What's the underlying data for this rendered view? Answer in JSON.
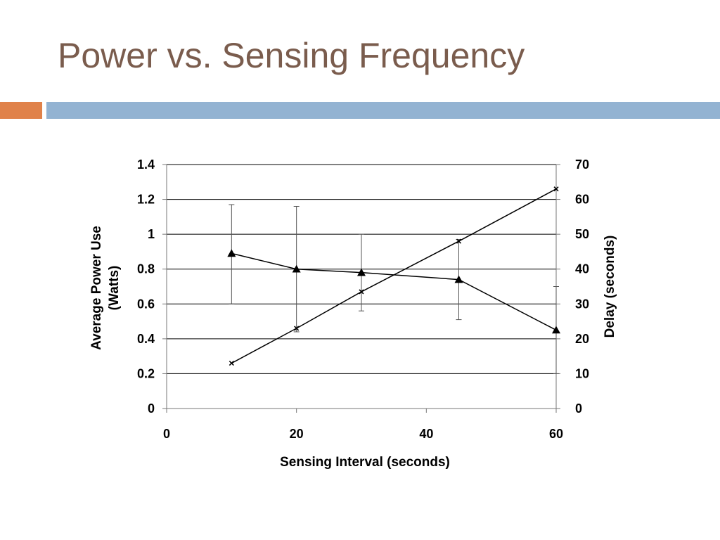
{
  "slide": {
    "title": "Power vs. Sensing Frequency",
    "accent_orange": "#e0824a",
    "accent_blue": "#93b3d2",
    "title_color": "#7a5c4d"
  },
  "chart_data": {
    "type": "line",
    "title": "",
    "xlabel": "Sensing Interval (seconds)",
    "ylabel_lines": [
      "Average Power Use",
      "(Watts)"
    ],
    "y2label": "Delay (seconds)",
    "xlim": [
      0,
      60
    ],
    "ylim": [
      0,
      1.4
    ],
    "y2lim": [
      0,
      70
    ],
    "x_ticks": [
      "0",
      "20",
      "40",
      "60"
    ],
    "x_tick_values": [
      0,
      20,
      40,
      60
    ],
    "y_ticks": [
      "0",
      "0.2",
      "0.4",
      "0.6",
      "0.8",
      "1",
      "1.2",
      "1.4"
    ],
    "y_tick_values": [
      0,
      0.2,
      0.4,
      0.6,
      0.8,
      1.0,
      1.2,
      1.4
    ],
    "y2_ticks": [
      "0",
      "10",
      "20",
      "30",
      "40",
      "50",
      "60",
      "70"
    ],
    "y2_tick_values": [
      0,
      10,
      20,
      30,
      40,
      50,
      60,
      70
    ],
    "grid": "horizontal",
    "series": [
      {
        "name": "Average Power Use",
        "axis": "left",
        "marker": "triangle",
        "x": [
          10,
          20,
          30,
          45,
          60
        ],
        "values": [
          0.89,
          0.8,
          0.78,
          0.74,
          0.45
        ],
        "error_low": [
          0.6,
          0.44,
          0.56,
          0.51,
          0.2
        ],
        "error_high": [
          1.17,
          1.16,
          1.0,
          0.97,
          0.7
        ]
      },
      {
        "name": "Delay",
        "axis": "right",
        "marker": "x",
        "x": [
          10,
          20,
          30,
          45,
          60
        ],
        "values": [
          13,
          23,
          33.5,
          48,
          63
        ]
      }
    ]
  }
}
